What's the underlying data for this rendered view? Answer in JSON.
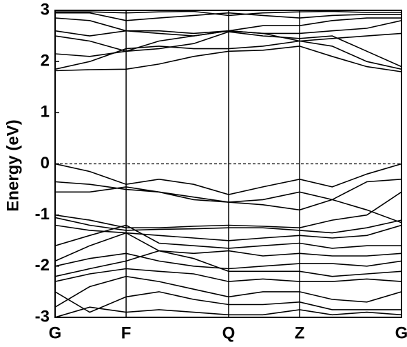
{
  "chart_data": {
    "type": "line",
    "y_label": "Energy (eV)",
    "color": "#000000",
    "x": [
      0,
      0.1,
      0.205,
      0.3,
      0.4,
      0.501,
      0.6,
      0.706,
      0.8,
      0.9,
      1
    ],
    "xlim": [
      0,
      1
    ],
    "xticks": [
      {
        "value": 0,
        "label": "G"
      },
      {
        "value": 0.205,
        "label": "F"
      },
      {
        "value": 0.501,
        "label": "Q"
      },
      {
        "value": 0.706,
        "label": "Z"
      },
      {
        "value": 1,
        "label": "G"
      }
    ],
    "ylim": [
      -3,
      3
    ],
    "yticks": [
      -3,
      -2,
      -1,
      0,
      1,
      2,
      3
    ],
    "fermi_level": 0,
    "series": [
      {
        "values": [
          1.82,
          1.84,
          1.85,
          1.95,
          2.1,
          2.2,
          2.22,
          2.3,
          2.1,
          1.9,
          1.8
        ]
      },
      {
        "values": [
          1.85,
          2.0,
          2.25,
          2.3,
          2.25,
          2.25,
          2.3,
          2.4,
          2.3,
          2.0,
          1.85
        ]
      },
      {
        "values": [
          2.15,
          2.1,
          2.2,
          2.25,
          2.35,
          2.58,
          2.5,
          2.45,
          2.5,
          2.2,
          1.9
        ]
      },
      {
        "values": [
          2.5,
          2.4,
          2.2,
          2.4,
          2.5,
          2.6,
          2.55,
          2.4,
          2.45,
          2.5,
          2.55
        ]
      },
      {
        "values": [
          2.6,
          2.5,
          2.6,
          2.6,
          2.55,
          2.6,
          2.55,
          2.55,
          2.6,
          2.65,
          2.8
        ]
      },
      {
        "values": [
          2.85,
          2.8,
          2.6,
          2.55,
          2.5,
          2.6,
          2.7,
          2.7,
          2.8,
          2.85,
          2.85
        ]
      },
      {
        "values": [
          2.95,
          2.95,
          2.8,
          2.85,
          2.9,
          2.95,
          2.9,
          2.85,
          2.9,
          2.92,
          2.92
        ]
      },
      {
        "values": [
          2.97,
          2.97,
          2.95,
          2.97,
          2.98,
          2.9,
          2.95,
          2.97,
          2.98,
          2.96,
          2.96
        ]
      },
      {
        "values": [
          0,
          -0.15,
          -0.4,
          -0.3,
          -0.4,
          -0.6,
          -0.45,
          -0.3,
          -0.45,
          -0.2,
          0
        ]
      },
      {
        "values": [
          -0.35,
          -0.4,
          -0.5,
          -0.55,
          -0.65,
          -0.75,
          -0.8,
          -0.9,
          -0.7,
          -0.35,
          -0.3
        ]
      },
      {
        "values": [
          -0.55,
          -0.55,
          -0.45,
          -0.55,
          -0.7,
          -0.75,
          -0.7,
          -0.55,
          -0.7,
          -0.9,
          -1.15
        ]
      },
      {
        "values": [
          -1.0,
          -1.1,
          -1.25,
          -1.25,
          -1.22,
          -1.2,
          -1.22,
          -1.25,
          -1.1,
          -1.0,
          -0.55
        ]
      },
      {
        "values": [
          -1.05,
          -1.2,
          -1.3,
          -1.28,
          -1.27,
          -1.25,
          -1.25,
          -1.3,
          -1.35,
          -1.25,
          -1.1
        ]
      },
      {
        "values": [
          -1.2,
          -1.3,
          -1.35,
          -1.4,
          -1.45,
          -1.5,
          -1.45,
          -1.4,
          -1.45,
          -1.4,
          -1.2
        ]
      },
      {
        "values": [
          -1.6,
          -1.4,
          -1.2,
          -1.55,
          -1.6,
          -1.65,
          -1.6,
          -1.55,
          -1.65,
          -1.6,
          -1.6
        ]
      },
      {
        "values": [
          -1.9,
          -1.6,
          -1.35,
          -1.7,
          -1.75,
          -1.7,
          -1.8,
          -1.75,
          -1.8,
          -1.8,
          -1.75
        ]
      },
      {
        "values": [
          -2.0,
          -1.85,
          -1.75,
          -1.9,
          -2.0,
          -2.05,
          -2.0,
          -1.95,
          -1.95,
          -2.0,
          -1.9
        ]
      },
      {
        "values": [
          -2.2,
          -2.05,
          -1.9,
          -1.7,
          -1.85,
          -2.1,
          -2.1,
          -2.1,
          -2.2,
          -2.15,
          -2.1
        ]
      },
      {
        "values": [
          -2.3,
          -2.15,
          -2.05,
          -2.1,
          -2.15,
          -2.3,
          -2.25,
          -2.3,
          -2.3,
          -2.25,
          -2.3
        ]
      },
      {
        "values": [
          -2.8,
          -2.4,
          -2.2,
          -2.3,
          -2.45,
          -2.6,
          -2.5,
          -2.5,
          -2.65,
          -2.7,
          -2.5
        ]
      },
      {
        "values": [
          -2.5,
          -2.9,
          -2.6,
          -2.5,
          -2.65,
          -2.75,
          -2.75,
          -2.7,
          -2.85,
          -2.85,
          -2.85
        ]
      },
      {
        "values": [
          -3.0,
          -2.8,
          -2.9,
          -2.85,
          -2.9,
          -2.95,
          -2.95,
          -2.85,
          -2.95,
          -2.9,
          -2.95
        ]
      }
    ]
  }
}
